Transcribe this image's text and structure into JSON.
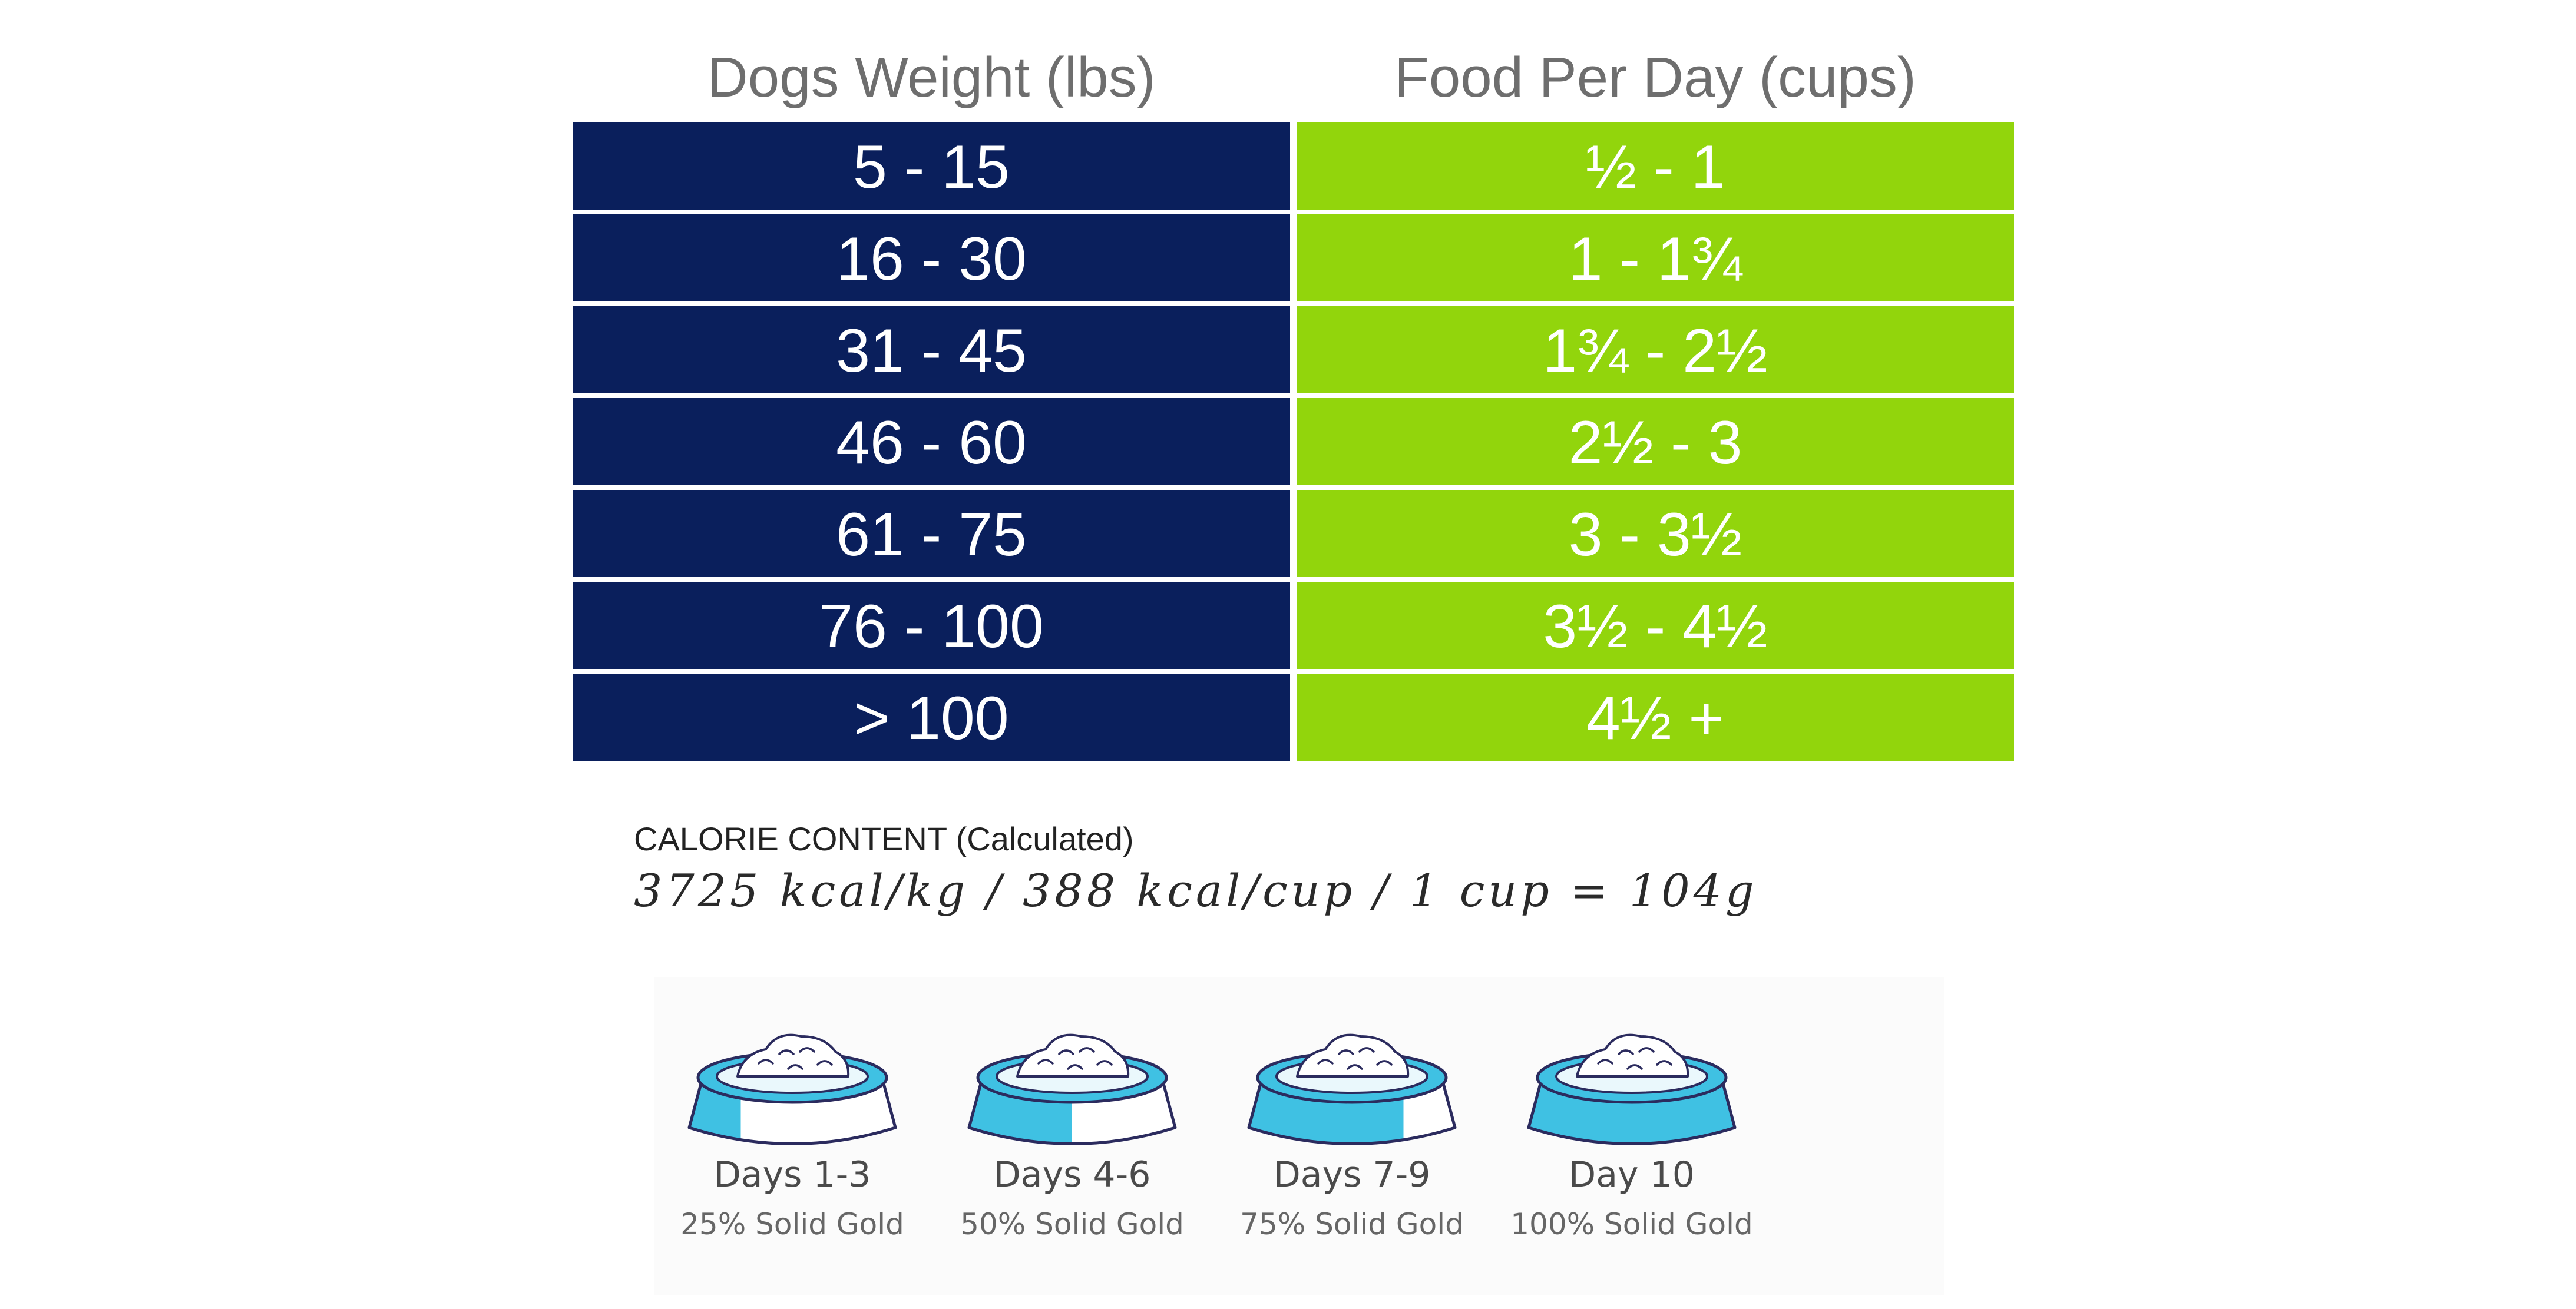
{
  "table": {
    "headers": {
      "weight": "Dogs Weight (lbs)",
      "food": "Food Per Day (cups)"
    },
    "rows": [
      {
        "weight": "5 - 15",
        "food": "½ - 1"
      },
      {
        "weight": "16 - 30",
        "food": "1 - 1¾"
      },
      {
        "weight": "31 - 45",
        "food": "1¾ - 2½"
      },
      {
        "weight": "46 - 60",
        "food": "2½ - 3"
      },
      {
        "weight": "61 - 75",
        "food": "3 - 3½"
      },
      {
        "weight": "76 - 100",
        "food": "3½ - 4½"
      },
      {
        "weight": "> 100",
        "food": "4½ +"
      }
    ],
    "colors": {
      "weight_bg": "#0a1f5c",
      "food_bg": "#92d50c",
      "header_text": "#6e6e6e"
    }
  },
  "calorie": {
    "label": "CALORIE CONTENT (Calculated)",
    "value": "3725 kcal/kg / 388 kcal/cup / 1 cup = 104g"
  },
  "transition": {
    "colors": {
      "bowl_fill": "#3fc1e3",
      "bowl_outline": "#2b2b5e"
    },
    "steps": [
      {
        "title": "Days 1-3",
        "subtitle": "25% Solid Gold",
        "fraction": 0.25
      },
      {
        "title": "Days 4-6",
        "subtitle": "50% Solid Gold",
        "fraction": 0.5
      },
      {
        "title": "Days 7-9",
        "subtitle": "75% Solid Gold",
        "fraction": 0.75
      },
      {
        "title": "Day 10",
        "subtitle": "100% Solid Gold",
        "fraction": 1.0
      }
    ]
  }
}
